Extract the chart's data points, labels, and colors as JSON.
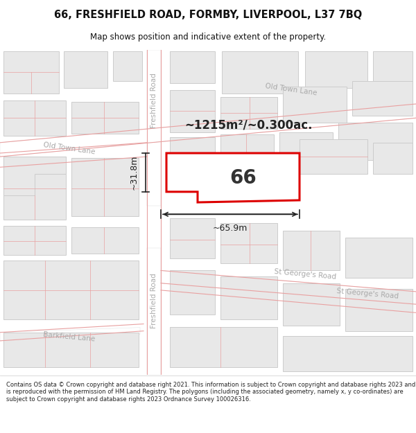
{
  "title_line1": "66, FRESHFIELD ROAD, FORMBY, LIVERPOOL, L37 7BQ",
  "title_line2": "Map shows position and indicative extent of the property.",
  "footer_text": "Contains OS data © Crown copyright and database right 2021. This information is subject to Crown copyright and database rights 2023 and is reproduced with the permission of HM Land Registry. The polygons (including the associated geometry, namely x, y co-ordinates) are subject to Crown copyright and database rights 2023 Ordnance Survey 100026316.",
  "bg_color": "#ffffff",
  "street_color": "#ffffff",
  "building_fill": "#e8e8e8",
  "building_stroke": "#cccccc",
  "road_line_color": "#e8a0a0",
  "highlight_fill": "#ffffff",
  "highlight_stroke": "#dd0000",
  "area_text": "~1215m²/~0.300ac.",
  "label_66": "66",
  "dim_width": "~65.9m",
  "dim_height": "~31.8m",
  "road_label_color": "#aaaaaa",
  "road_label_size": 7.5
}
